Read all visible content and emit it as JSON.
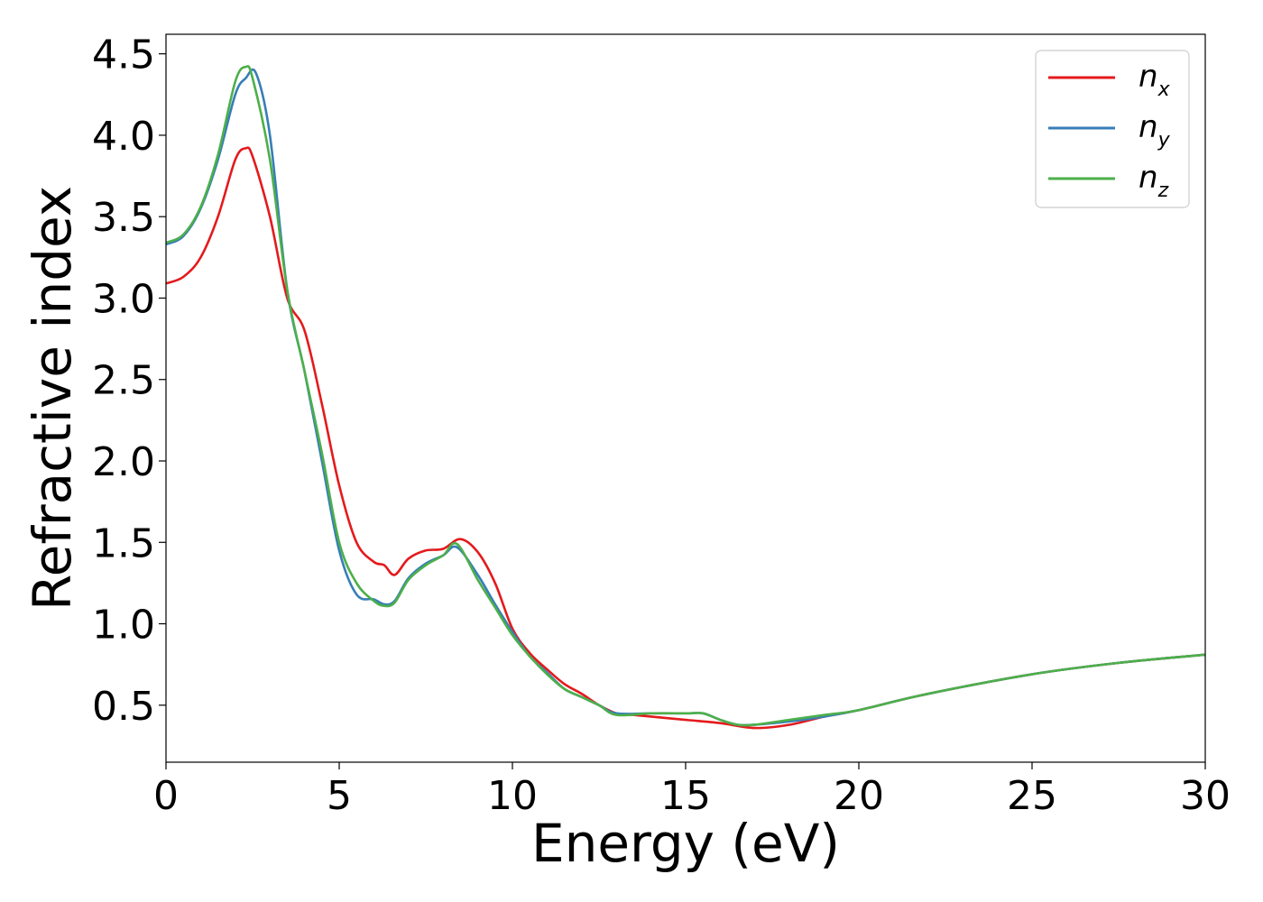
{
  "chart_data": {
    "type": "line",
    "xlabel": "Energy (eV)",
    "ylabel": "Refractive index",
    "xlim": [
      0,
      30
    ],
    "ylim": [
      0.15,
      4.62
    ],
    "xticks": [
      "0",
      "5",
      "10",
      "15",
      "20",
      "25",
      "30"
    ],
    "yticks": [
      "0.5",
      "1.0",
      "1.5",
      "2.0",
      "2.5",
      "3.0",
      "3.5",
      "4.0",
      "4.5"
    ],
    "grid": false,
    "legend_position": "top-right",
    "series": [
      {
        "name": "n_x",
        "label_base": "n",
        "label_sub": "x",
        "color": "#e41a1c",
        "x": [
          0,
          0.5,
          1.0,
          1.5,
          2.0,
          2.3,
          2.5,
          3.0,
          3.5,
          4.0,
          4.5,
          5.0,
          5.5,
          6.0,
          6.3,
          6.6,
          7.0,
          7.5,
          8.0,
          8.5,
          9.0,
          9.5,
          10.0,
          10.5,
          11.0,
          11.5,
          12.0,
          12.5,
          13.0,
          13.5,
          14.0,
          15.0,
          16.0,
          17.0,
          18.0,
          19.0,
          20.0,
          22.0,
          25.0,
          27.5,
          30.0
        ],
        "y": [
          3.09,
          3.13,
          3.25,
          3.5,
          3.85,
          3.92,
          3.87,
          3.5,
          3.0,
          2.8,
          2.35,
          1.85,
          1.5,
          1.38,
          1.36,
          1.3,
          1.4,
          1.45,
          1.46,
          1.52,
          1.44,
          1.25,
          0.97,
          0.82,
          0.72,
          0.63,
          0.57,
          0.5,
          0.45,
          0.44,
          0.43,
          0.41,
          0.39,
          0.36,
          0.38,
          0.43,
          0.47,
          0.57,
          0.69,
          0.76,
          0.81
        ]
      },
      {
        "name": "n_y",
        "label_base": "n",
        "label_sub": "y",
        "color": "#377eb8",
        "x": [
          0,
          0.5,
          1.0,
          1.5,
          2.0,
          2.3,
          2.6,
          3.0,
          3.5,
          4.0,
          4.5,
          5.0,
          5.5,
          6.0,
          6.3,
          6.6,
          7.0,
          7.5,
          8.0,
          8.4,
          9.0,
          9.5,
          10.0,
          10.5,
          11.0,
          11.5,
          12.0,
          12.5,
          13.0,
          14.0,
          15.0,
          15.5,
          16.0,
          16.5,
          17.0,
          18.0,
          19.0,
          20.0,
          22.0,
          25.0,
          27.5,
          30.0
        ],
        "y": [
          3.33,
          3.38,
          3.55,
          3.85,
          4.25,
          4.35,
          4.38,
          4.0,
          3.05,
          2.55,
          2.0,
          1.45,
          1.18,
          1.15,
          1.12,
          1.14,
          1.28,
          1.37,
          1.42,
          1.47,
          1.3,
          1.12,
          0.95,
          0.8,
          0.7,
          0.6,
          0.55,
          0.5,
          0.45,
          0.45,
          0.45,
          0.45,
          0.41,
          0.38,
          0.38,
          0.4,
          0.43,
          0.47,
          0.57,
          0.69,
          0.76,
          0.81
        ]
      },
      {
        "name": "n_z",
        "label_base": "n",
        "label_sub": "z",
        "color": "#4daf4a",
        "x": [
          0,
          0.5,
          1.0,
          1.5,
          2.0,
          2.3,
          2.5,
          3.0,
          3.5,
          4.0,
          4.5,
          5.0,
          5.5,
          6.0,
          6.3,
          6.6,
          7.0,
          7.5,
          8.0,
          8.4,
          9.0,
          9.5,
          10.0,
          10.5,
          11.0,
          11.5,
          12.0,
          12.5,
          13.0,
          14.0,
          15.0,
          15.5,
          16.0,
          16.5,
          17.0,
          18.0,
          19.0,
          20.0,
          22.0,
          25.0,
          27.5,
          30.0
        ],
        "y": [
          3.34,
          3.39,
          3.56,
          3.88,
          4.33,
          4.42,
          4.35,
          3.85,
          3.05,
          2.55,
          2.05,
          1.5,
          1.25,
          1.14,
          1.11,
          1.13,
          1.27,
          1.36,
          1.42,
          1.49,
          1.27,
          1.1,
          0.93,
          0.8,
          0.69,
          0.6,
          0.55,
          0.5,
          0.44,
          0.45,
          0.45,
          0.45,
          0.41,
          0.38,
          0.38,
          0.41,
          0.44,
          0.47,
          0.57,
          0.69,
          0.76,
          0.81
        ]
      }
    ]
  }
}
